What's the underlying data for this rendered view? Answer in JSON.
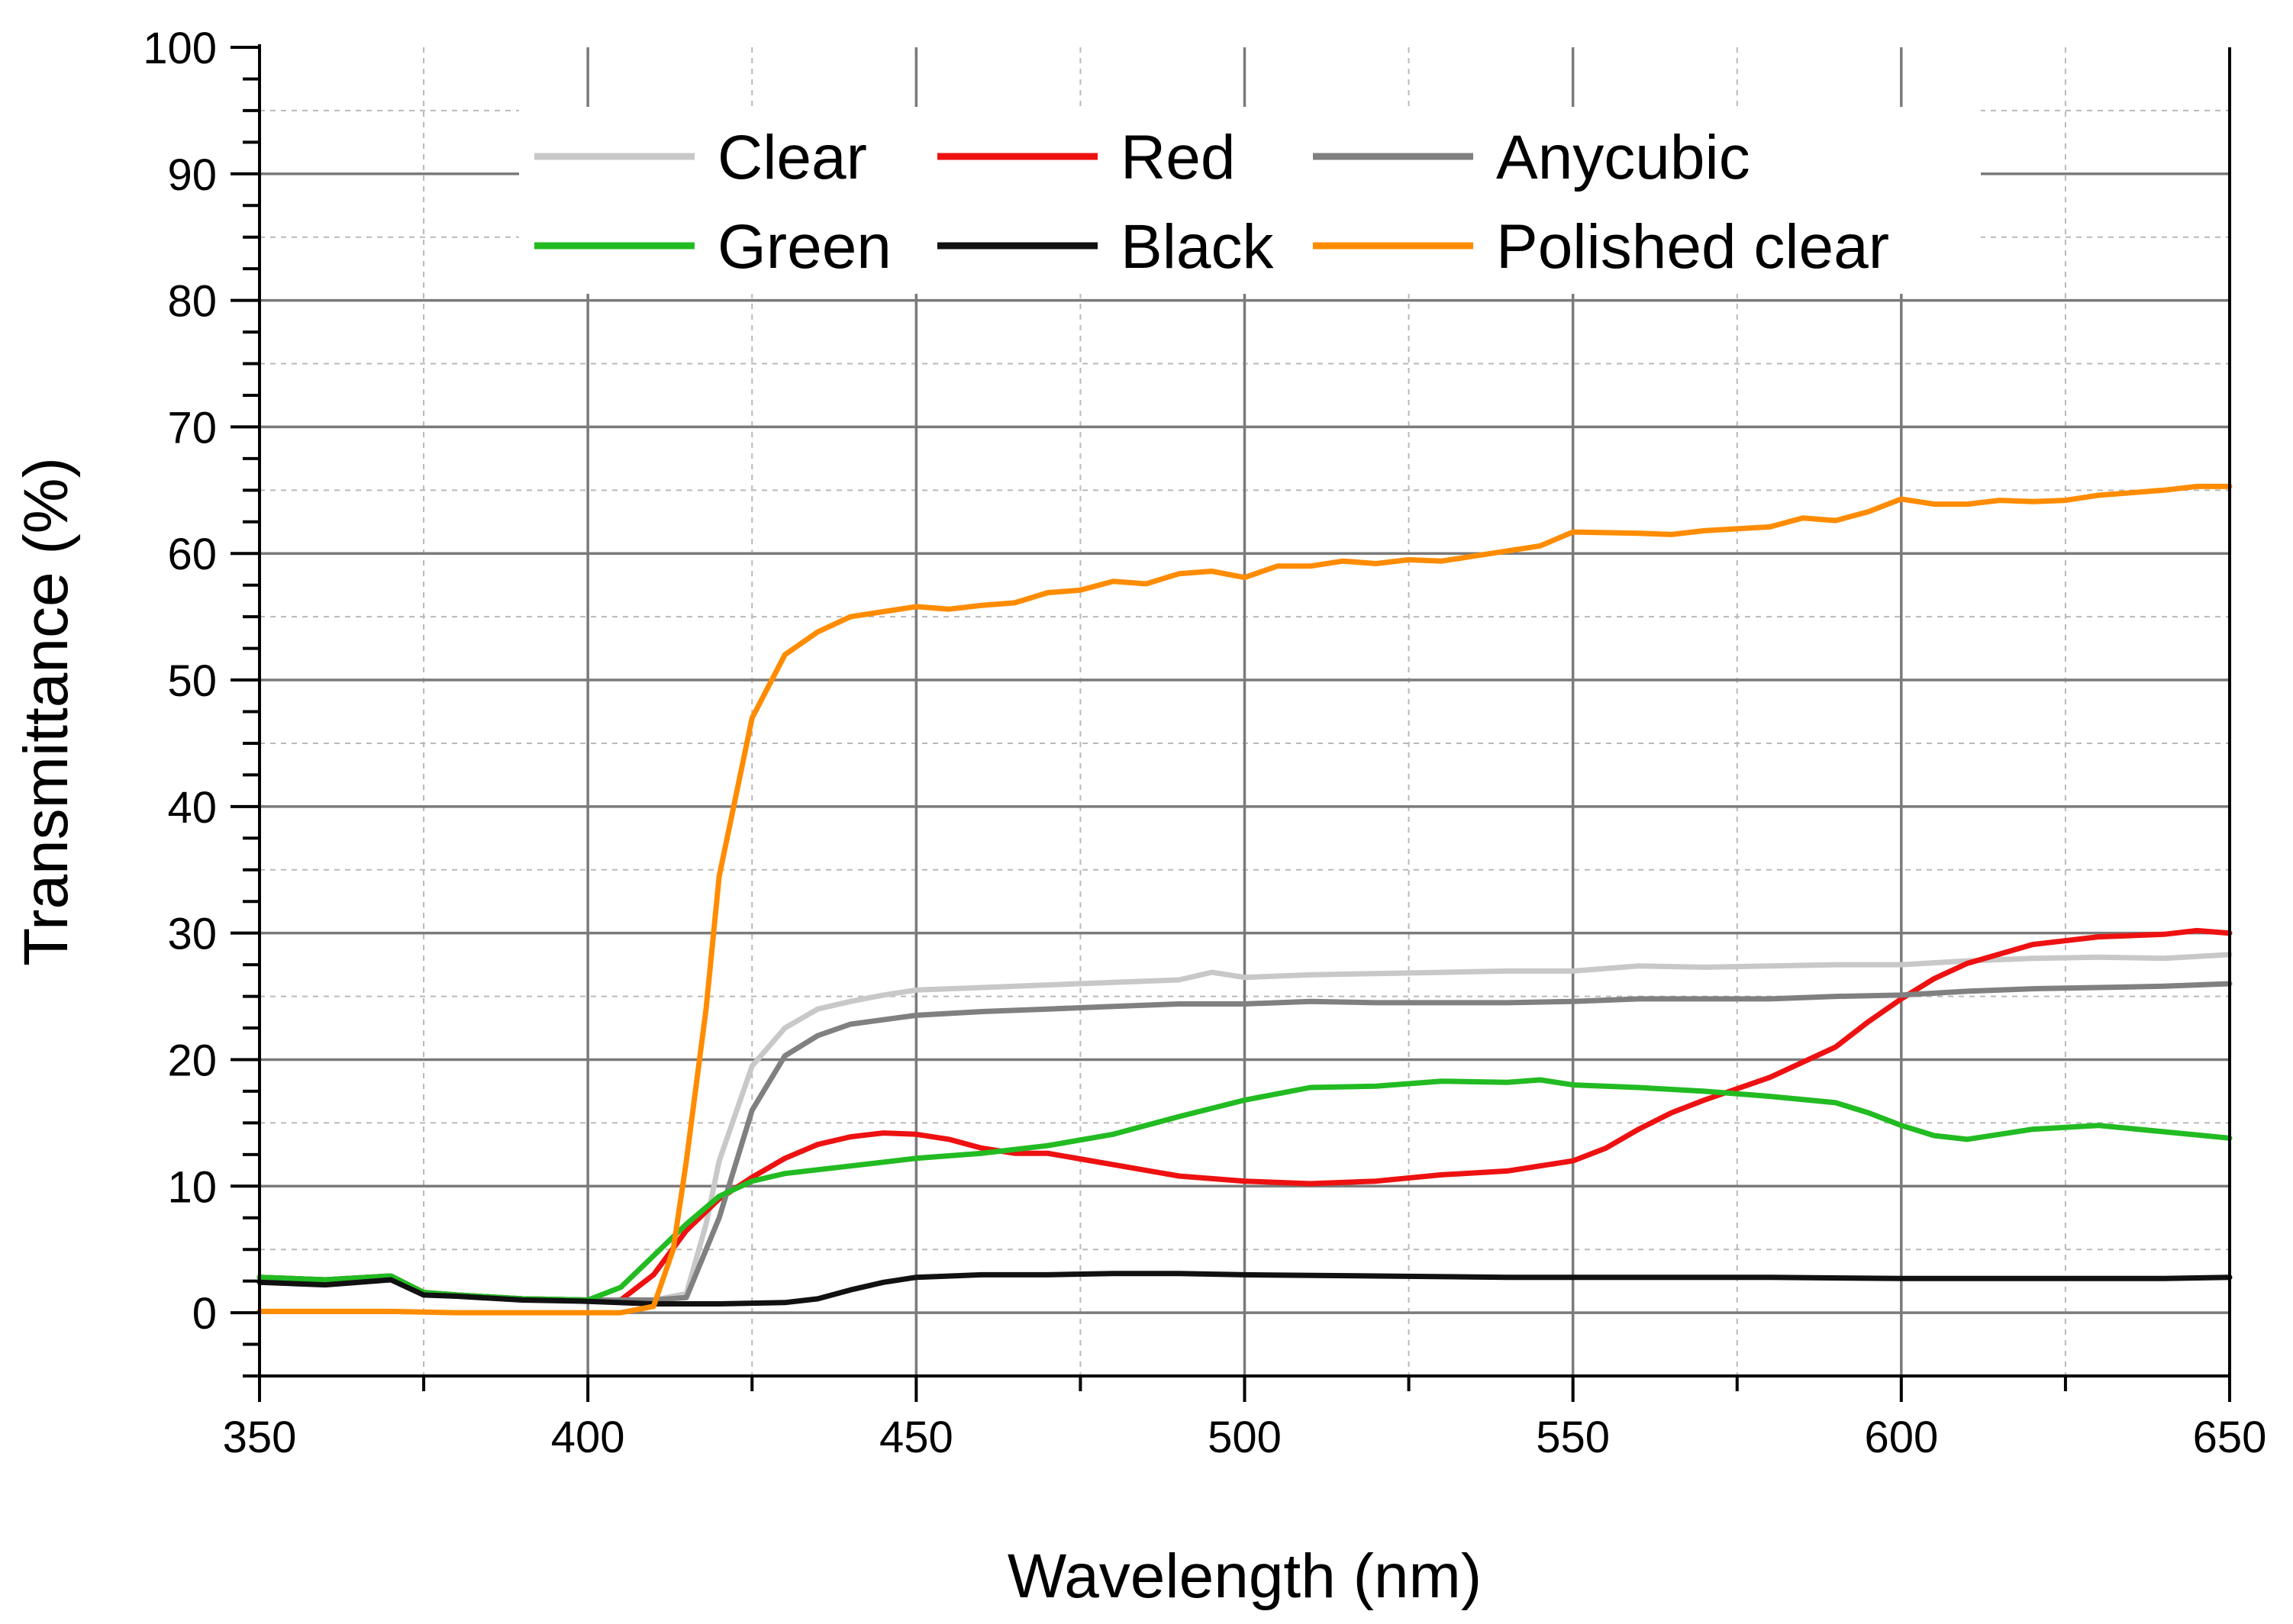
{
  "chart_data": {
    "type": "line",
    "xlabel": "Wavelength (nm)",
    "ylabel": "Transmittance (%)",
    "xlim": [
      350,
      650
    ],
    "ylim": [
      -5,
      100
    ],
    "xticks": [
      "350",
      "400",
      "450",
      "500",
      "550",
      "600",
      "650"
    ],
    "yticks": [
      "0",
      "10",
      "20",
      "30",
      "40",
      "50",
      "60",
      "70",
      "80",
      "90",
      "100"
    ],
    "grid": true,
    "legend_position": "top",
    "series": [
      {
        "name": "Clear",
        "color": "#c8c8c8",
        "points": [
          [
            350,
            2.8
          ],
          [
            360,
            2.6
          ],
          [
            370,
            2.9
          ],
          [
            375,
            1.6
          ],
          [
            380,
            1.4
          ],
          [
            390,
            1.1
          ],
          [
            400,
            1.0
          ],
          [
            405,
            1.0
          ],
          [
            410,
            1.0
          ],
          [
            415,
            1.5
          ],
          [
            418,
            7
          ],
          [
            420,
            12
          ],
          [
            425,
            19.5
          ],
          [
            430,
            22.5
          ],
          [
            435,
            24
          ],
          [
            440,
            24.6
          ],
          [
            445,
            25.1
          ],
          [
            450,
            25.5
          ],
          [
            460,
            25.7
          ],
          [
            470,
            25.9
          ],
          [
            480,
            26.1
          ],
          [
            490,
            26.3
          ],
          [
            495,
            26.9
          ],
          [
            500,
            26.5
          ],
          [
            510,
            26.7
          ],
          [
            520,
            26.8
          ],
          [
            530,
            26.9
          ],
          [
            540,
            27.0
          ],
          [
            550,
            27.0
          ],
          [
            560,
            27.4
          ],
          [
            570,
            27.3
          ],
          [
            580,
            27.4
          ],
          [
            590,
            27.5
          ],
          [
            600,
            27.5
          ],
          [
            610,
            27.8
          ],
          [
            620,
            28.0
          ],
          [
            630,
            28.1
          ],
          [
            640,
            28.0
          ],
          [
            650,
            28.3
          ]
        ]
      },
      {
        "name": "Red",
        "color": "#ee1111",
        "points": [
          [
            350,
            2.8
          ],
          [
            360,
            2.6
          ],
          [
            370,
            2.9
          ],
          [
            375,
            1.6
          ],
          [
            380,
            1.4
          ],
          [
            390,
            1.1
          ],
          [
            400,
            1.0
          ],
          [
            405,
            1.0
          ],
          [
            410,
            3
          ],
          [
            415,
            6.5
          ],
          [
            420,
            9
          ],
          [
            425,
            10.7
          ],
          [
            430,
            12.2
          ],
          [
            435,
            13.3
          ],
          [
            440,
            13.9
          ],
          [
            445,
            14.2
          ],
          [
            450,
            14.1
          ],
          [
            455,
            13.7
          ],
          [
            460,
            13.0
          ],
          [
            465,
            12.6
          ],
          [
            470,
            12.6
          ],
          [
            480,
            11.7
          ],
          [
            490,
            10.8
          ],
          [
            500,
            10.4
          ],
          [
            510,
            10.2
          ],
          [
            520,
            10.4
          ],
          [
            530,
            10.9
          ],
          [
            540,
            11.2
          ],
          [
            550,
            12.0
          ],
          [
            555,
            13
          ],
          [
            560,
            14.5
          ],
          [
            565,
            15.8
          ],
          [
            570,
            16.8
          ],
          [
            580,
            18.6
          ],
          [
            590,
            21
          ],
          [
            595,
            23
          ],
          [
            600,
            24.8
          ],
          [
            605,
            26.4
          ],
          [
            610,
            27.6
          ],
          [
            620,
            29.1
          ],
          [
            630,
            29.7
          ],
          [
            640,
            29.9
          ],
          [
            645,
            30.2
          ],
          [
            650,
            30.0
          ]
        ]
      },
      {
        "name": "Anycubic",
        "color": "#808080",
        "points": [
          [
            350,
            2.8
          ],
          [
            360,
            2.6
          ],
          [
            370,
            2.9
          ],
          [
            375,
            1.6
          ],
          [
            380,
            1.4
          ],
          [
            390,
            1.1
          ],
          [
            400,
            1.0
          ],
          [
            410,
            1.0
          ],
          [
            415,
            1.2
          ],
          [
            420,
            7.5
          ],
          [
            425,
            16
          ],
          [
            430,
            20.3
          ],
          [
            435,
            21.9
          ],
          [
            440,
            22.8
          ],
          [
            450,
            23.5
          ],
          [
            460,
            23.8
          ],
          [
            470,
            24.0
          ],
          [
            480,
            24.2
          ],
          [
            490,
            24.4
          ],
          [
            500,
            24.4
          ],
          [
            510,
            24.6
          ],
          [
            520,
            24.5
          ],
          [
            530,
            24.5
          ],
          [
            540,
            24.5
          ],
          [
            550,
            24.6
          ],
          [
            560,
            24.8
          ],
          [
            570,
            24.8
          ],
          [
            580,
            24.8
          ],
          [
            590,
            25.0
          ],
          [
            600,
            25.1
          ],
          [
            610,
            25.4
          ],
          [
            620,
            25.6
          ],
          [
            630,
            25.7
          ],
          [
            640,
            25.8
          ],
          [
            650,
            26.0
          ]
        ]
      },
      {
        "name": "Green",
        "color": "#22bb22",
        "points": [
          [
            350,
            2.8
          ],
          [
            360,
            2.6
          ],
          [
            370,
            2.9
          ],
          [
            375,
            1.6
          ],
          [
            380,
            1.4
          ],
          [
            390,
            1.1
          ],
          [
            400,
            1.0
          ],
          [
            405,
            2
          ],
          [
            410,
            4.5
          ],
          [
            415,
            7
          ],
          [
            420,
            9.2
          ],
          [
            425,
            10.4
          ],
          [
            430,
            11
          ],
          [
            440,
            11.6
          ],
          [
            450,
            12.2
          ],
          [
            460,
            12.6
          ],
          [
            470,
            13.2
          ],
          [
            480,
            14.1
          ],
          [
            490,
            15.5
          ],
          [
            500,
            16.8
          ],
          [
            510,
            17.8
          ],
          [
            520,
            17.9
          ],
          [
            530,
            18.3
          ],
          [
            540,
            18.2
          ],
          [
            545,
            18.4
          ],
          [
            550,
            18.0
          ],
          [
            560,
            17.8
          ],
          [
            570,
            17.5
          ],
          [
            580,
            17.1
          ],
          [
            590,
            16.6
          ],
          [
            595,
            15.8
          ],
          [
            600,
            14.8
          ],
          [
            605,
            14.0
          ],
          [
            610,
            13.7
          ],
          [
            620,
            14.5
          ],
          [
            630,
            14.8
          ],
          [
            640,
            14.3
          ],
          [
            650,
            13.8
          ]
        ]
      },
      {
        "name": "Black",
        "color": "#111111",
        "points": [
          [
            350,
            2.4
          ],
          [
            360,
            2.2
          ],
          [
            370,
            2.6
          ],
          [
            375,
            1.4
          ],
          [
            380,
            1.3
          ],
          [
            390,
            1.0
          ],
          [
            400,
            0.9
          ],
          [
            410,
            0.7
          ],
          [
            420,
            0.7
          ],
          [
            430,
            0.8
          ],
          [
            435,
            1.1
          ],
          [
            440,
            1.8
          ],
          [
            445,
            2.4
          ],
          [
            450,
            2.8
          ],
          [
            460,
            3.0
          ],
          [
            470,
            3.0
          ],
          [
            480,
            3.1
          ],
          [
            490,
            3.1
          ],
          [
            500,
            3.0
          ],
          [
            520,
            2.9
          ],
          [
            540,
            2.8
          ],
          [
            560,
            2.8
          ],
          [
            580,
            2.8
          ],
          [
            600,
            2.7
          ],
          [
            620,
            2.7
          ],
          [
            640,
            2.7
          ],
          [
            650,
            2.8
          ]
        ]
      },
      {
        "name": "Polished clear",
        "color": "#ff8c00",
        "points": [
          [
            350,
            0.1
          ],
          [
            360,
            0.1
          ],
          [
            370,
            0.1
          ],
          [
            380,
            0
          ],
          [
            390,
            0
          ],
          [
            400,
            0
          ],
          [
            405,
            0
          ],
          [
            410,
            0.5
          ],
          [
            413,
            5
          ],
          [
            415,
            12
          ],
          [
            418,
            24
          ],
          [
            420,
            34.5
          ],
          [
            425,
            47
          ],
          [
            430,
            52
          ],
          [
            435,
            53.8
          ],
          [
            440,
            55
          ],
          [
            450,
            55.8
          ],
          [
            455,
            55.6
          ],
          [
            460,
            55.9
          ],
          [
            465,
            56.1
          ],
          [
            470,
            56.9
          ],
          [
            475,
            57.1
          ],
          [
            480,
            57.8
          ],
          [
            485,
            57.6
          ],
          [
            490,
            58.4
          ],
          [
            495,
            58.6
          ],
          [
            500,
            58.1
          ],
          [
            505,
            59.0
          ],
          [
            510,
            59.0
          ],
          [
            515,
            59.4
          ],
          [
            520,
            59.2
          ],
          [
            525,
            59.5
          ],
          [
            530,
            59.4
          ],
          [
            540,
            60.2
          ],
          [
            545,
            60.6
          ],
          [
            550,
            61.7
          ],
          [
            560,
            61.6
          ],
          [
            565,
            61.5
          ],
          [
            570,
            61.8
          ],
          [
            580,
            62.1
          ],
          [
            585,
            62.8
          ],
          [
            590,
            62.6
          ],
          [
            595,
            63.3
          ],
          [
            600,
            64.3
          ],
          [
            605,
            63.9
          ],
          [
            610,
            63.9
          ],
          [
            615,
            64.2
          ],
          [
            620,
            64.1
          ],
          [
            625,
            64.2
          ],
          [
            630,
            64.6
          ],
          [
            640,
            65.0
          ],
          [
            645,
            65.3
          ],
          [
            650,
            65.3
          ]
        ]
      }
    ]
  }
}
